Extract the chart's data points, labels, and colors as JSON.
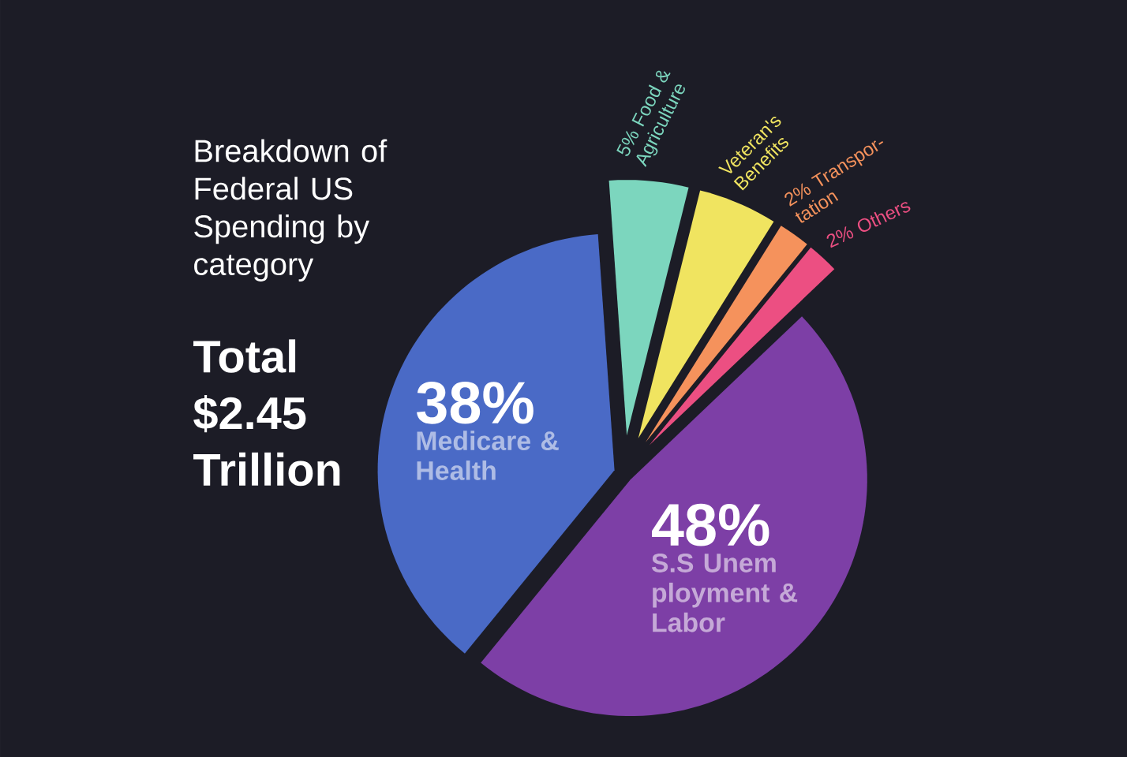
{
  "chart_data": {
    "type": "pie",
    "title": "Breakdown of Federal US Spending by category",
    "subtitle": "Total $2.45 Trillion",
    "categories": [
      "Medicare & Health",
      "S.S Unem ployment & Labor",
      "Others",
      "Transpor- tation",
      "Veteran's Benefits",
      "Food & Agriculture"
    ],
    "values": [
      38,
      48,
      2,
      2,
      5,
      5
    ],
    "value_labels": [
      "38%",
      "48%",
      "2%",
      "2%",
      null,
      "5%"
    ],
    "colors": [
      "#4a6ac6",
      "#7d3fa6",
      "#ec4f82",
      "#f5925c",
      "#f0e460",
      "#7cd6be"
    ]
  }
}
